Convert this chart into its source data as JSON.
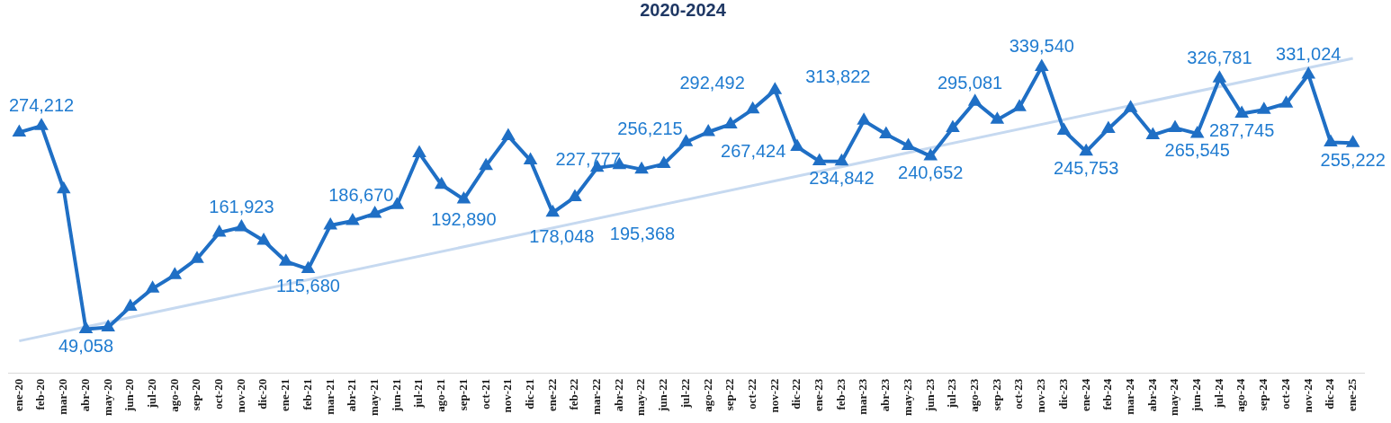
{
  "chart_data": {
    "type": "line",
    "title": "2020-2024",
    "categories": [
      "ene-20",
      "feb-20",
      "mar-20",
      "abr-20",
      "may-20",
      "jun-20",
      "jul-20",
      "ago-20",
      "sep-20",
      "oct-20",
      "nov-20",
      "dic-20",
      "ene-21",
      "feb-21",
      "mar-21",
      "abr-21",
      "may-21",
      "jun-21",
      "jul-21",
      "ago-21",
      "sep-21",
      "oct-21",
      "nov-21",
      "dic-21",
      "ene-22",
      "feb-22",
      "mar-22",
      "abr-22",
      "may-22",
      "jun-22",
      "jul-22",
      "ago-22",
      "sep-22",
      "oct-22",
      "nov-22",
      "dic-22",
      "ene-23",
      "feb-23",
      "mar-23",
      "abr-23",
      "may-23",
      "jun-23",
      "jul-23",
      "ago-23",
      "sep-23",
      "oct-23",
      "nov-23",
      "dic-23",
      "ene-24",
      "feb-24",
      "mar-24",
      "abr-24",
      "may-24",
      "jun-24",
      "jul-24",
      "ago-24",
      "sep-24",
      "oct-24",
      "nov-24",
      "dic-24",
      "ene-25"
    ],
    "series": [
      {
        "color": "#c6d9f0",
        "type": "line",
        "marker": "none",
        "x": [
          "ene-20",
          "ene-25"
        ],
        "values": [
          36000,
          349000
        ]
      },
      {
        "color": "#1f6fc5",
        "marker": "triangle",
        "values": [
          267000,
          274212,
          204000,
          49058,
          51000,
          74000,
          94000,
          109000,
          127000,
          156000,
          161923,
          147000,
          124000,
          115680,
          164000,
          169000,
          177000,
          186670,
          244000,
          209000,
          192890,
          230000,
          263000,
          236000,
          178048,
          195368,
          227777,
          231000,
          226000,
          232000,
          256215,
          267424,
          276000,
          292492,
          313822,
          251000,
          235000,
          234842,
          280000,
          265000,
          252000,
          240652,
          272000,
          301000,
          281000,
          295081,
          339540,
          269000,
          245753,
          271000,
          294000,
          264000,
          272000,
          265545,
          326781,
          287745,
          292000,
          299000,
          331024,
          256000,
          255222
        ],
        "value_labels": [
          null,
          "274,212",
          null,
          "49,058",
          null,
          null,
          null,
          null,
          null,
          null,
          "161,923",
          null,
          null,
          "115,680",
          null,
          null,
          null,
          "186,670",
          null,
          null,
          "192,890",
          null,
          null,
          null,
          "178,048",
          "195,368",
          "227,777",
          null,
          null,
          null,
          "256,215",
          "267,424",
          null,
          "292,492",
          "313,822",
          null,
          null,
          "234,842",
          null,
          null,
          null,
          "240,652",
          null,
          null,
          null,
          "295,081",
          "339,540",
          null,
          "245,753",
          null,
          null,
          null,
          null,
          "265,545",
          "326,781",
          "287,745",
          null,
          null,
          "331,024",
          null,
          "255,222"
        ]
      }
    ],
    "legend": false,
    "grid": false,
    "line_style": "solid"
  }
}
